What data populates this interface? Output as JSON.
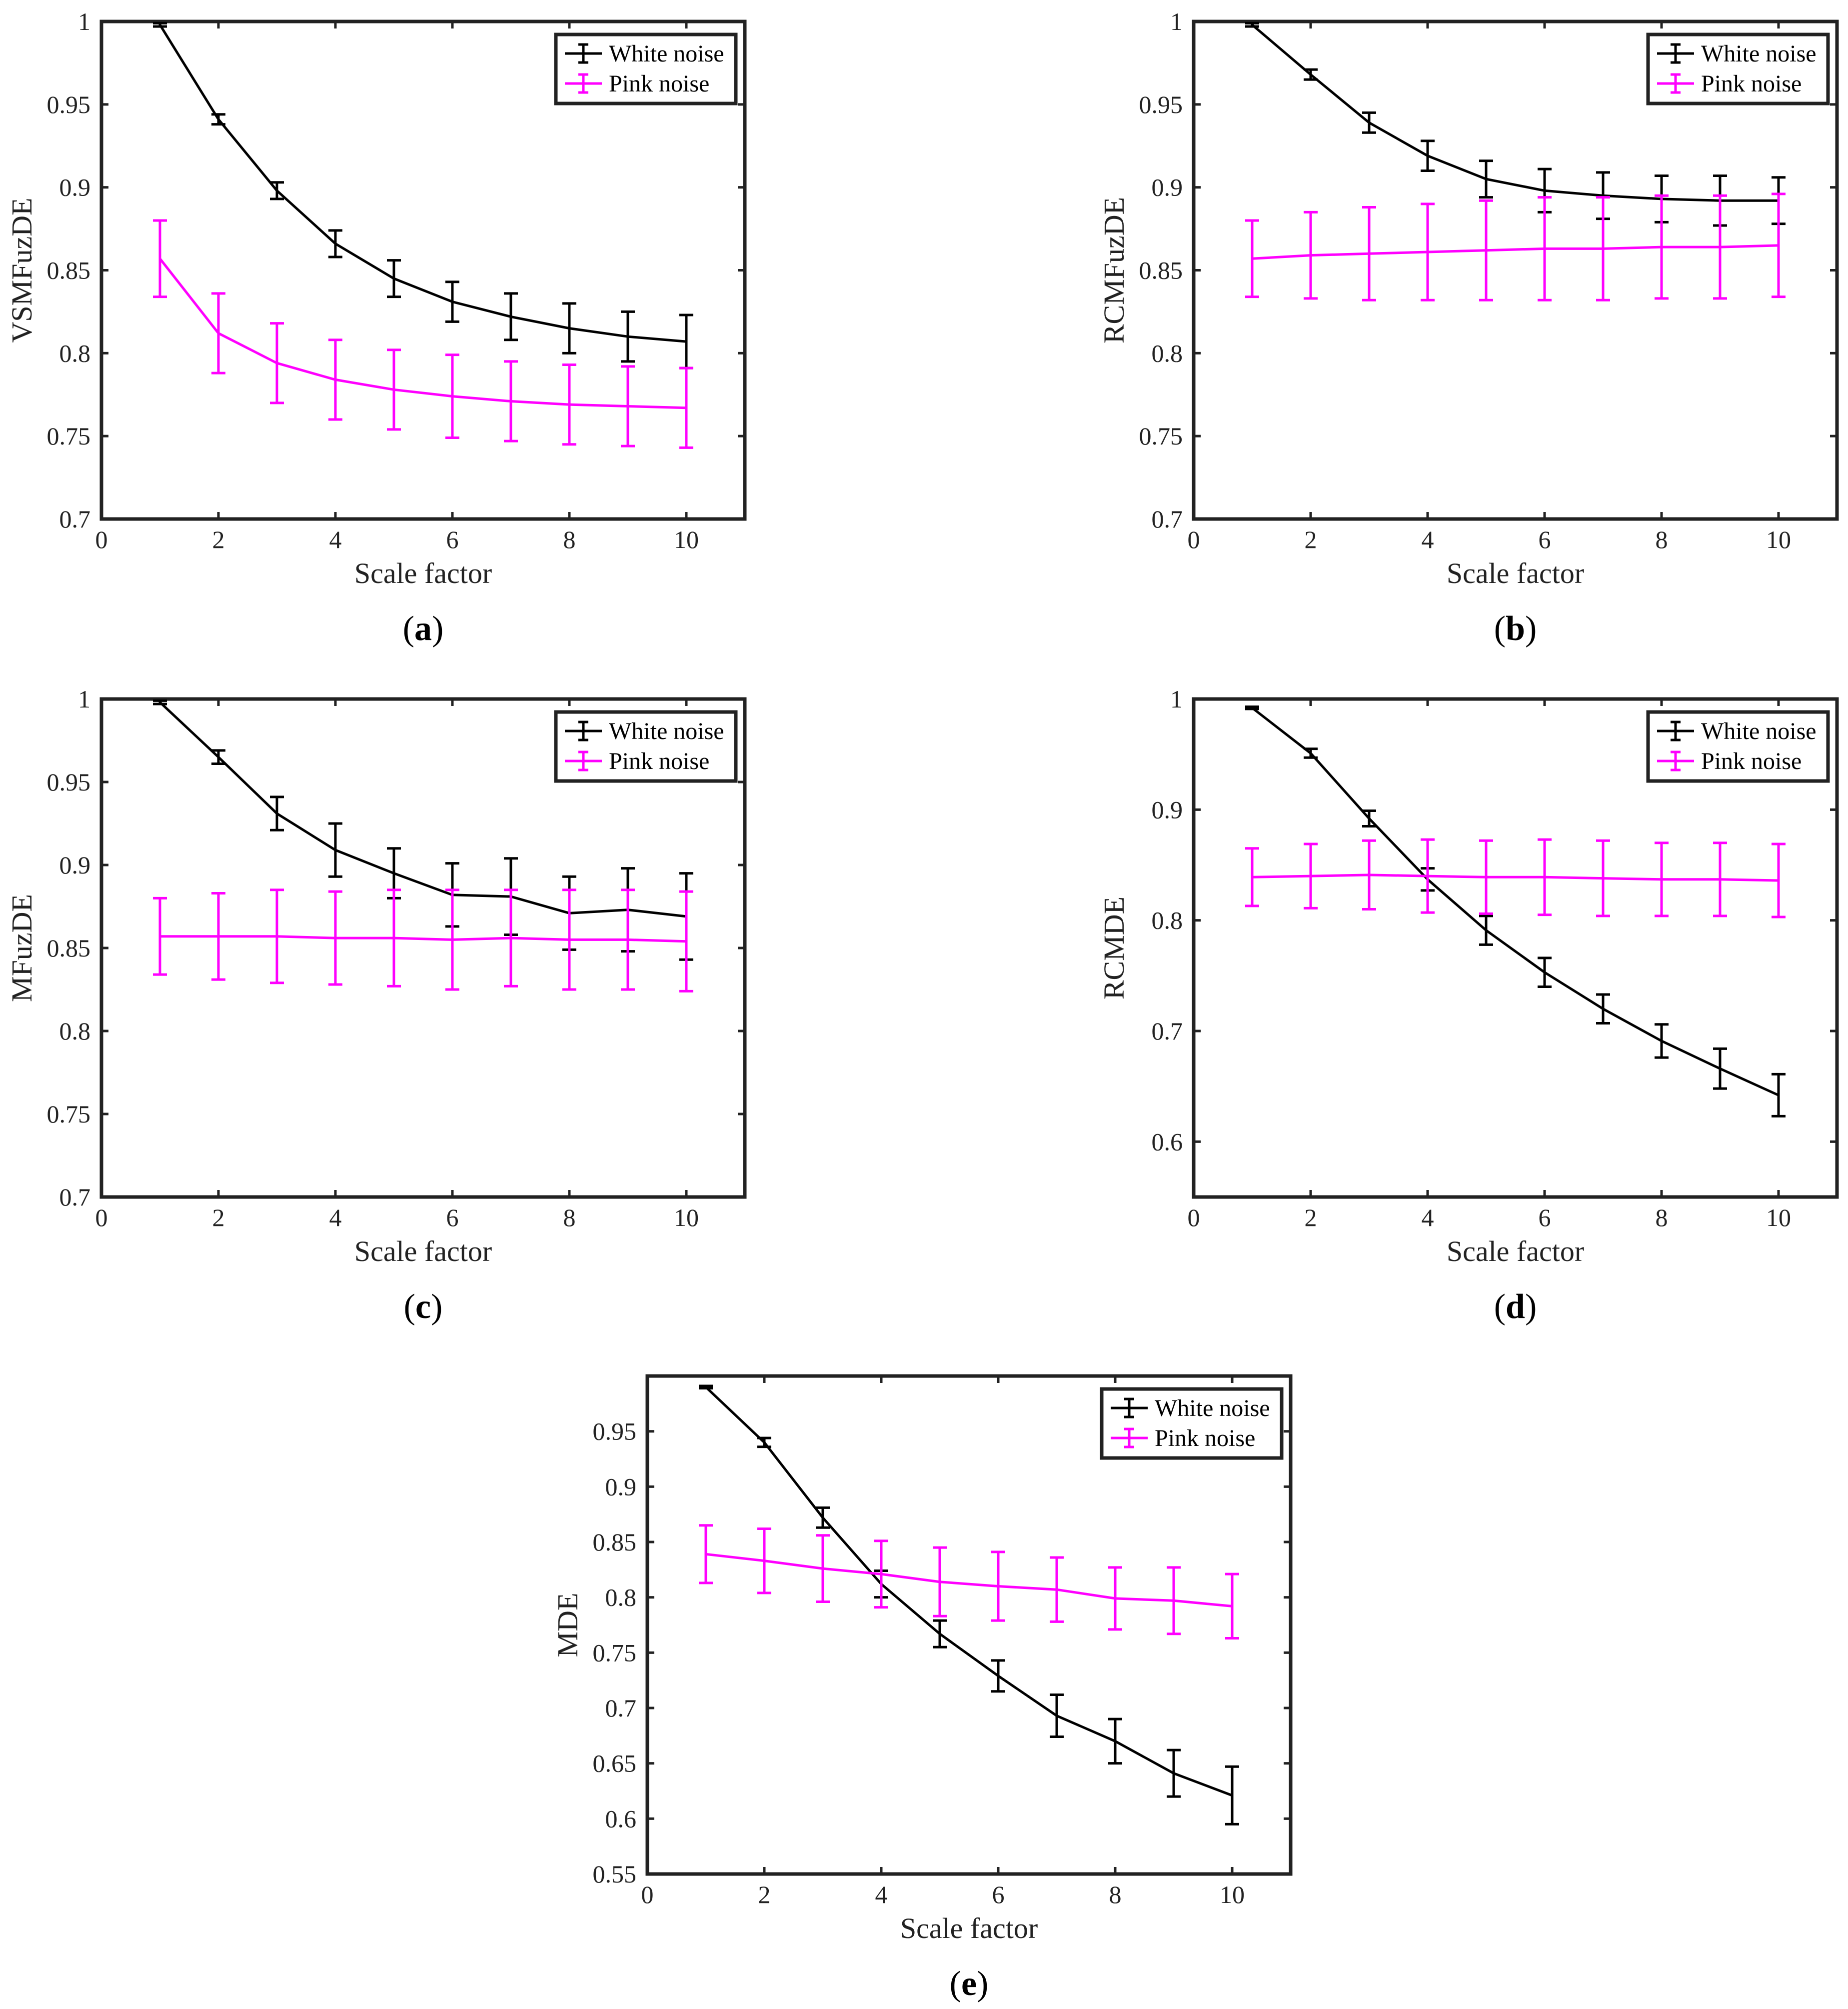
{
  "chart_data": [
    {
      "type": "line",
      "panel_label": "a",
      "title": "",
      "xlabel": "Scale factor",
      "ylabel": "VSMFuzDE",
      "xlim": [
        0,
        11
      ],
      "ylim": [
        0.7,
        1.0
      ],
      "xticks": [
        0,
        2,
        4,
        6,
        8,
        10
      ],
      "yticks": [
        0.7,
        0.75,
        0.8,
        0.85,
        0.9,
        0.95,
        1.0
      ],
      "ytick_labels": [
        "0.7",
        "0.75",
        "0.8",
        "0.85",
        "0.9",
        "0.95",
        "1"
      ],
      "grid": false,
      "legend": "top-right",
      "x": [
        1,
        2,
        3,
        4,
        5,
        6,
        7,
        8,
        9,
        10
      ],
      "series": [
        {
          "name": "White noise",
          "color": "#000000",
          "values": [
            0.998,
            0.941,
            0.898,
            0.866,
            0.845,
            0.831,
            0.822,
            0.815,
            0.81,
            0.807
          ],
          "errors": [
            0.001,
            0.003,
            0.005,
            0.008,
            0.011,
            0.012,
            0.014,
            0.015,
            0.015,
            0.016
          ]
        },
        {
          "name": "Pink noise",
          "color": "#ff00ff",
          "values": [
            0.857,
            0.812,
            0.794,
            0.784,
            0.778,
            0.774,
            0.771,
            0.769,
            0.768,
            0.767
          ],
          "errors": [
            0.023,
            0.024,
            0.024,
            0.024,
            0.024,
            0.025,
            0.024,
            0.024,
            0.024,
            0.024
          ]
        }
      ]
    },
    {
      "type": "line",
      "panel_label": "b",
      "title": "",
      "xlabel": "Scale factor",
      "ylabel": "RCMFuzDE",
      "xlim": [
        0,
        11
      ],
      "ylim": [
        0.7,
        1.0
      ],
      "xticks": [
        0,
        2,
        4,
        6,
        8,
        10
      ],
      "yticks": [
        0.7,
        0.75,
        0.8,
        0.85,
        0.9,
        0.95,
        1.0
      ],
      "ytick_labels": [
        "0.7",
        "0.75",
        "0.8",
        "0.85",
        "0.9",
        "0.95",
        "1"
      ],
      "grid": false,
      "legend": "top-right",
      "x": [
        1,
        2,
        3,
        4,
        5,
        6,
        7,
        8,
        9,
        10
      ],
      "series": [
        {
          "name": "White noise",
          "color": "#000000",
          "values": [
            0.998,
            0.968,
            0.939,
            0.919,
            0.905,
            0.898,
            0.895,
            0.893,
            0.892,
            0.892
          ],
          "errors": [
            0.001,
            0.003,
            0.006,
            0.009,
            0.011,
            0.013,
            0.014,
            0.014,
            0.015,
            0.014
          ]
        },
        {
          "name": "Pink noise",
          "color": "#ff00ff",
          "values": [
            0.857,
            0.859,
            0.86,
            0.861,
            0.862,
            0.863,
            0.863,
            0.864,
            0.864,
            0.865
          ],
          "errors": [
            0.023,
            0.026,
            0.028,
            0.029,
            0.03,
            0.031,
            0.031,
            0.031,
            0.031,
            0.031
          ]
        }
      ]
    },
    {
      "type": "line",
      "panel_label": "c",
      "title": "",
      "xlabel": "Scale factor",
      "ylabel": "MFuzDE",
      "xlim": [
        0,
        11
      ],
      "ylim": [
        0.7,
        1.0
      ],
      "xticks": [
        0,
        2,
        4,
        6,
        8,
        10
      ],
      "yticks": [
        0.7,
        0.75,
        0.8,
        0.85,
        0.9,
        0.95,
        1.0
      ],
      "ytick_labels": [
        "0.7",
        "0.75",
        "0.8",
        "0.85",
        "0.9",
        "0.95",
        "1"
      ],
      "grid": false,
      "legend": "top-right",
      "x": [
        1,
        2,
        3,
        4,
        5,
        6,
        7,
        8,
        9,
        10
      ],
      "series": [
        {
          "name": "White noise",
          "color": "#000000",
          "values": [
            0.998,
            0.965,
            0.931,
            0.909,
            0.895,
            0.882,
            0.881,
            0.871,
            0.873,
            0.869
          ],
          "errors": [
            0.001,
            0.004,
            0.01,
            0.016,
            0.015,
            0.019,
            0.023,
            0.022,
            0.025,
            0.026
          ]
        },
        {
          "name": "Pink noise",
          "color": "#ff00ff",
          "values": [
            0.857,
            0.857,
            0.857,
            0.856,
            0.856,
            0.855,
            0.856,
            0.855,
            0.855,
            0.854
          ],
          "errors": [
            0.023,
            0.026,
            0.028,
            0.028,
            0.029,
            0.03,
            0.029,
            0.03,
            0.03,
            0.03
          ]
        }
      ]
    },
    {
      "type": "line",
      "panel_label": "d",
      "title": "",
      "xlabel": "Scale factor",
      "ylabel": "RCMDE",
      "xlim": [
        0,
        11
      ],
      "ylim": [
        0.55,
        1.0
      ],
      "xticks": [
        0,
        2,
        4,
        6,
        8,
        10
      ],
      "yticks": [
        0.6,
        0.7,
        0.8,
        0.9,
        1.0
      ],
      "ytick_labels": [
        "0.6",
        "0.7",
        "0.8",
        "0.9",
        "1"
      ],
      "grid": false,
      "legend": "top-right",
      "x": [
        1,
        2,
        3,
        4,
        5,
        6,
        7,
        8,
        9,
        10
      ],
      "series": [
        {
          "name": "White noise",
          "color": "#000000",
          "values": [
            0.992,
            0.951,
            0.892,
            0.837,
            0.791,
            0.753,
            0.72,
            0.691,
            0.666,
            0.642
          ],
          "errors": [
            0.001,
            0.004,
            0.007,
            0.01,
            0.013,
            0.013,
            0.013,
            0.015,
            0.018,
            0.019
          ]
        },
        {
          "name": "Pink noise",
          "color": "#ff00ff",
          "values": [
            0.839,
            0.84,
            0.841,
            0.84,
            0.839,
            0.839,
            0.838,
            0.837,
            0.837,
            0.836
          ],
          "errors": [
            0.026,
            0.029,
            0.031,
            0.033,
            0.033,
            0.034,
            0.034,
            0.033,
            0.033,
            0.033
          ]
        }
      ]
    },
    {
      "type": "line",
      "panel_label": "e",
      "title": "",
      "xlabel": "Scale factor",
      "ylabel": "MDE",
      "xlim": [
        0,
        11
      ],
      "ylim": [
        0.55,
        1.0
      ],
      "xticks": [
        0,
        2,
        4,
        6,
        8,
        10
      ],
      "yticks": [
        0.55,
        0.6,
        0.65,
        0.7,
        0.75,
        0.8,
        0.85,
        0.9,
        0.95
      ],
      "ytick_labels": [
        "0.55",
        "0.6",
        "0.65",
        "0.7",
        "0.75",
        "0.8",
        "0.85",
        "0.9",
        "0.95"
      ],
      "grid": false,
      "legend": "top-right",
      "x": [
        1,
        2,
        3,
        4,
        5,
        6,
        7,
        8,
        9,
        10
      ],
      "series": [
        {
          "name": "White noise",
          "color": "#000000",
          "values": [
            0.99,
            0.94,
            0.872,
            0.812,
            0.767,
            0.729,
            0.693,
            0.67,
            0.641,
            0.621
          ],
          "errors": [
            0.001,
            0.004,
            0.009,
            0.012,
            0.012,
            0.014,
            0.019,
            0.02,
            0.021,
            0.026
          ]
        },
        {
          "name": "Pink noise",
          "color": "#ff00ff",
          "values": [
            0.839,
            0.833,
            0.826,
            0.821,
            0.814,
            0.81,
            0.807,
            0.799,
            0.797,
            0.792
          ],
          "errors": [
            0.026,
            0.029,
            0.03,
            0.03,
            0.031,
            0.031,
            0.029,
            0.028,
            0.03,
            0.029
          ]
        }
      ]
    }
  ]
}
